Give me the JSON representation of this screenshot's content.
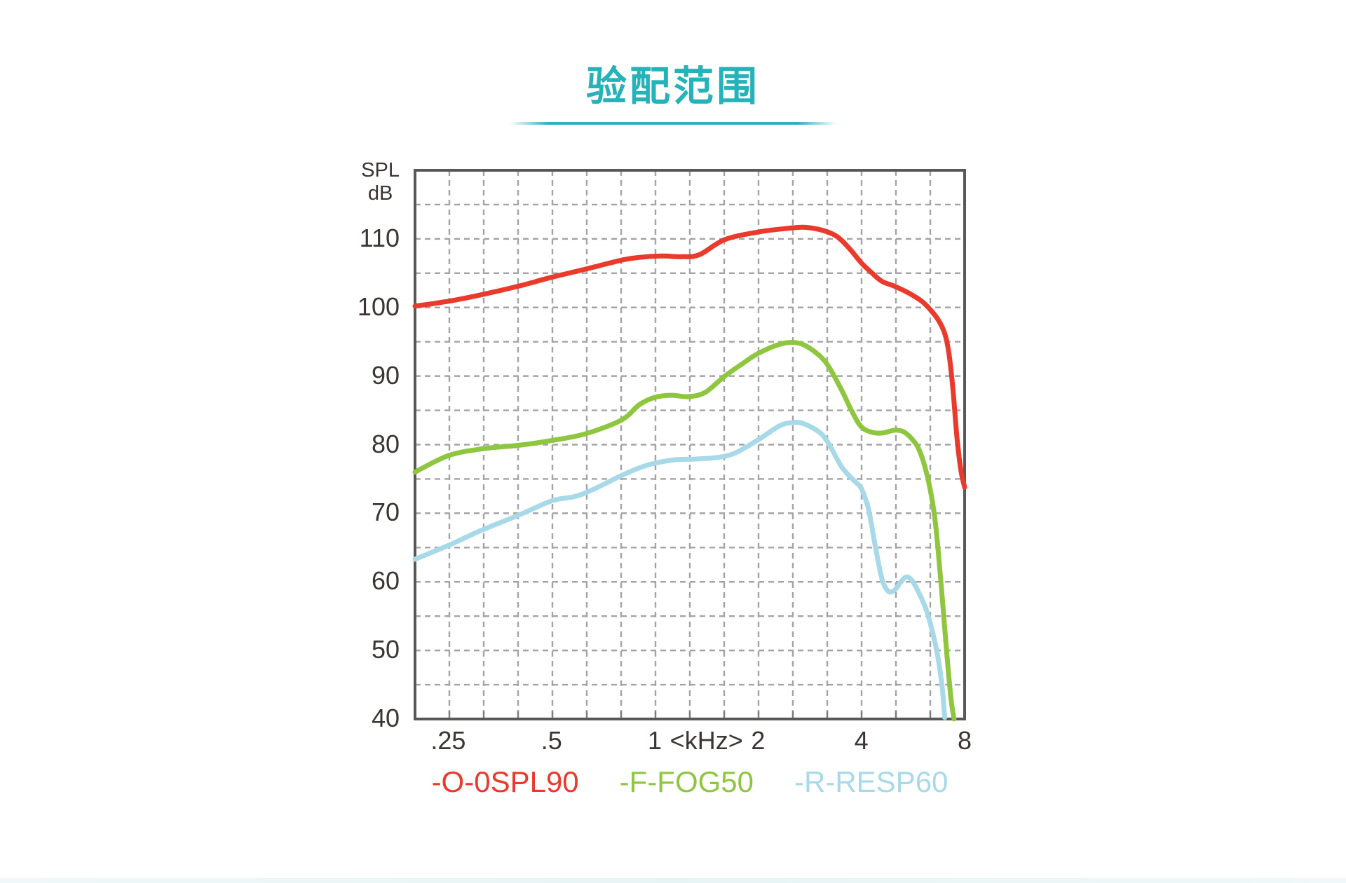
{
  "page": {
    "title": "验配范围"
  },
  "accent": {
    "title_color": "#25b2b8",
    "underline_color": "#2bb1c0",
    "footer_bar_color": "#eaf5f6"
  },
  "chart_data": {
    "type": "line",
    "title": "验配范围",
    "x_axis": {
      "scale": "log2",
      "min_khz": 0.2,
      "max_khz": 8,
      "unit_label": "<kHz>",
      "ticks": [
        {
          "f": 0.25,
          "label": ".25"
        },
        {
          "f": 0.5,
          "label": ".5"
        },
        {
          "f": 1,
          "label": "1"
        },
        {
          "f": 1.4142,
          "label": "<kHz>"
        },
        {
          "f": 2,
          "label": "2"
        },
        {
          "f": 4,
          "label": "4"
        },
        {
          "f": 8,
          "label": "8"
        }
      ],
      "grid_divisions": 16
    },
    "y_axis": {
      "label_lines": [
        "SPL",
        "dB"
      ],
      "min": 40,
      "max": 120,
      "grid_step": 5,
      "ticks": [
        110,
        100,
        90,
        80,
        70,
        60,
        50,
        40
      ]
    },
    "grid": {
      "color": "#a4a4a6",
      "dash": "8 6",
      "width": 2.4
    },
    "frame": {
      "color": "#58585a",
      "width": 4
    },
    "series": [
      {
        "name": "-O-0SPL90",
        "color": "#e93a2c",
        "points_khz_db": [
          [
            0.2,
            100.2
          ],
          [
            0.25,
            100.9
          ],
          [
            0.315,
            101.9
          ],
          [
            0.4,
            103.1
          ],
          [
            0.5,
            104.4
          ],
          [
            0.63,
            105.6
          ],
          [
            0.8,
            106.9
          ],
          [
            0.9,
            107.3
          ],
          [
            1.05,
            107.5
          ],
          [
            1.2,
            107.4
          ],
          [
            1.35,
            107.7
          ],
          [
            1.6,
            109.9
          ],
          [
            2.0,
            111.0
          ],
          [
            2.4,
            111.5
          ],
          [
            2.7,
            111.7
          ],
          [
            3.0,
            111.4
          ],
          [
            3.3,
            110.7
          ],
          [
            3.5,
            109.8
          ],
          [
            3.75,
            108.2
          ],
          [
            4.0,
            106.5
          ],
          [
            4.3,
            105.0
          ],
          [
            4.6,
            103.8
          ],
          [
            5.0,
            103.1
          ],
          [
            5.5,
            102.1
          ],
          [
            6.0,
            100.9
          ],
          [
            6.35,
            99.7
          ],
          [
            6.7,
            98.2
          ],
          [
            7.0,
            96.2
          ],
          [
            7.2,
            93.3
          ],
          [
            7.4,
            88.0
          ],
          [
            7.6,
            81.0
          ],
          [
            7.8,
            76.3
          ],
          [
            8.0,
            73.8
          ]
        ]
      },
      {
        "name": "-F-FOG50",
        "color": "#8fc640",
        "points_khz_db": [
          [
            0.2,
            76.0
          ],
          [
            0.25,
            78.4
          ],
          [
            0.315,
            79.4
          ],
          [
            0.4,
            79.9
          ],
          [
            0.5,
            80.6
          ],
          [
            0.63,
            81.6
          ],
          [
            0.8,
            83.6
          ],
          [
            0.9,
            85.8
          ],
          [
            1.0,
            86.9
          ],
          [
            1.12,
            87.2
          ],
          [
            1.25,
            87.0
          ],
          [
            1.4,
            87.6
          ],
          [
            1.6,
            90.0
          ],
          [
            1.8,
            91.8
          ],
          [
            2.0,
            93.3
          ],
          [
            2.3,
            94.6
          ],
          [
            2.55,
            94.9
          ],
          [
            2.8,
            94.2
          ],
          [
            3.15,
            92.0
          ],
          [
            3.5,
            88.0
          ],
          [
            3.75,
            84.9
          ],
          [
            4.0,
            82.6
          ],
          [
            4.3,
            81.8
          ],
          [
            4.6,
            81.7
          ],
          [
            5.0,
            82.1
          ],
          [
            5.3,
            81.9
          ],
          [
            5.6,
            80.9
          ],
          [
            5.9,
            79.2
          ],
          [
            6.2,
            75.8
          ],
          [
            6.5,
            70.5
          ],
          [
            6.7,
            64.5
          ],
          [
            6.9,
            57.0
          ],
          [
            7.1,
            49.5
          ],
          [
            7.3,
            43.0
          ],
          [
            7.45,
            40.0
          ]
        ]
      },
      {
        "name": "-R-RESP60",
        "color": "#a7d9e8",
        "points_khz_db": [
          [
            0.2,
            63.3
          ],
          [
            0.25,
            65.3
          ],
          [
            0.315,
            67.6
          ],
          [
            0.4,
            69.7
          ],
          [
            0.5,
            71.8
          ],
          [
            0.58,
            72.4
          ],
          [
            0.65,
            73.3
          ],
          [
            0.8,
            75.5
          ],
          [
            0.9,
            76.6
          ],
          [
            1.0,
            77.3
          ],
          [
            1.15,
            77.8
          ],
          [
            1.3,
            77.9
          ],
          [
            1.5,
            78.1
          ],
          [
            1.7,
            78.7
          ],
          [
            2.0,
            80.7
          ],
          [
            2.3,
            82.7
          ],
          [
            2.5,
            83.2
          ],
          [
            2.7,
            83.1
          ],
          [
            3.0,
            81.9
          ],
          [
            3.2,
            80.3
          ],
          [
            3.5,
            76.8
          ],
          [
            3.8,
            74.8
          ],
          [
            4.0,
            73.6
          ],
          [
            4.2,
            70.5
          ],
          [
            4.4,
            65.0
          ],
          [
            4.6,
            60.3
          ],
          [
            4.8,
            58.6
          ],
          [
            5.0,
            58.8
          ],
          [
            5.2,
            59.9
          ],
          [
            5.4,
            60.7
          ],
          [
            5.6,
            60.3
          ],
          [
            5.8,
            59.0
          ],
          [
            6.0,
            57.5
          ],
          [
            6.25,
            55.2
          ],
          [
            6.6,
            50.5
          ],
          [
            6.85,
            45.5
          ],
          [
            7.0,
            40.2
          ]
        ]
      }
    ],
    "legend_position": "bottom-center",
    "grid_on": true
  }
}
